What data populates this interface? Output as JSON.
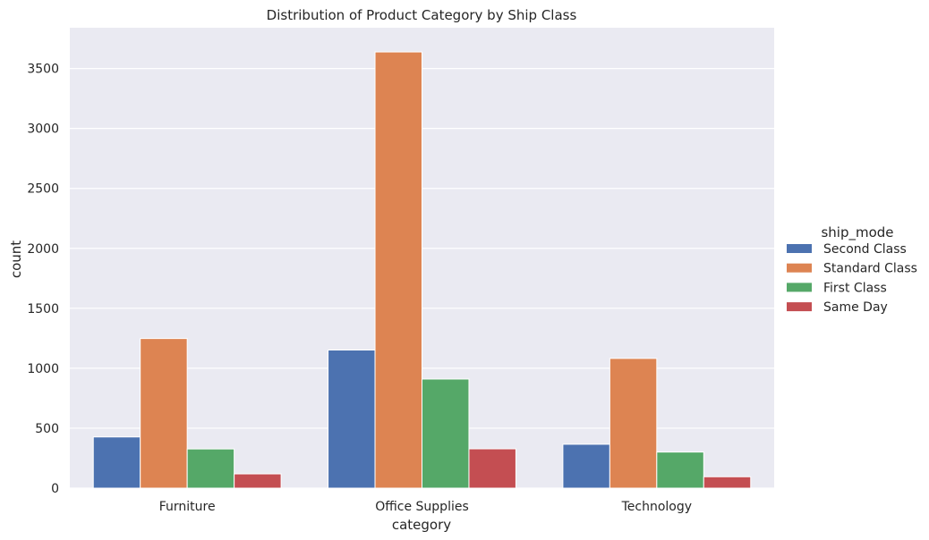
{
  "chart_data": {
    "type": "bar",
    "title": "Distribution of Product Category by Ship Class",
    "xlabel": "category",
    "ylabel": "count",
    "categories": [
      "Furniture",
      "Office Supplies",
      "Technology"
    ],
    "series": [
      {
        "name": "Second Class",
        "color": "#4c72b0",
        "values": [
          427,
          1152,
          366
        ]
      },
      {
        "name": "Standard Class",
        "color": "#dd8452",
        "values": [
          1248,
          3638,
          1082
        ]
      },
      {
        "name": "First Class",
        "color": "#55a868",
        "values": [
          327,
          910,
          301
        ]
      },
      {
        "name": "Same Day",
        "color": "#c44e52",
        "values": [
          119,
          328,
          95
        ]
      }
    ],
    "ylim": [
      0,
      3840
    ],
    "yticks": [
      0,
      500,
      1000,
      1500,
      2000,
      2500,
      3000,
      3500
    ],
    "grid": true,
    "legend": {
      "title": "ship_mode",
      "placement": "right"
    }
  },
  "colors": {
    "plot_background": "#eaeaf2",
    "grid": "#ffffff"
  }
}
